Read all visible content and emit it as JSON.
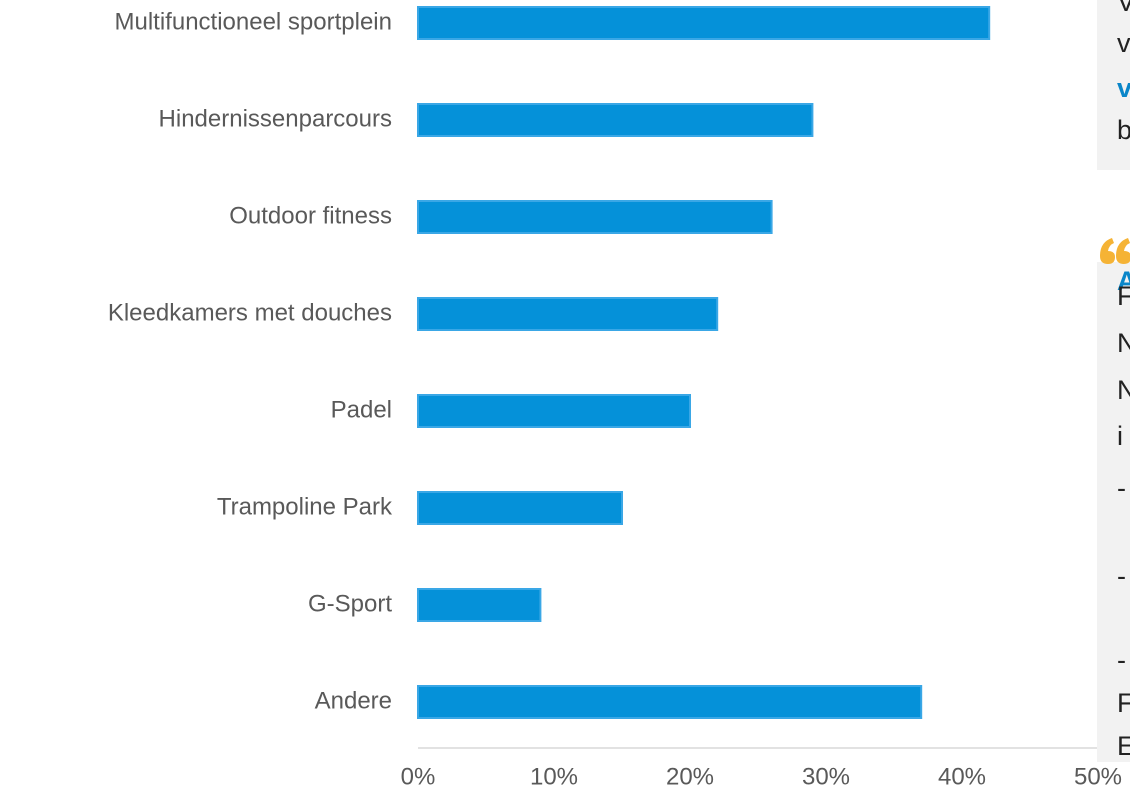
{
  "chart_data": {
    "type": "barh",
    "categories": [
      "Multifunctioneel sportplein",
      "Hindernissenparcours",
      "Outdoor fitness",
      "Kleedkamers met douches",
      "Padel",
      "Trampoline Park",
      "G-Sport",
      "Andere"
    ],
    "values": [
      42,
      29,
      26,
      22,
      20,
      15,
      9,
      37
    ],
    "color": "#0591d9",
    "xlim": [
      0,
      50
    ],
    "xticks": [
      {
        "value": 0,
        "label": "0%"
      },
      {
        "value": 10,
        "label": "10%"
      },
      {
        "value": 20,
        "label": "20%"
      },
      {
        "value": 30,
        "label": "30%"
      },
      {
        "value": 40,
        "label": "40%"
      },
      {
        "value": 50,
        "label": "50%"
      }
    ],
    "grid": false
  },
  "side_text": [
    "V",
    "v",
    "v",
    "b",
    "A",
    "F",
    "N",
    "N",
    "i",
    "-",
    "-",
    "-",
    "F",
    "E"
  ]
}
